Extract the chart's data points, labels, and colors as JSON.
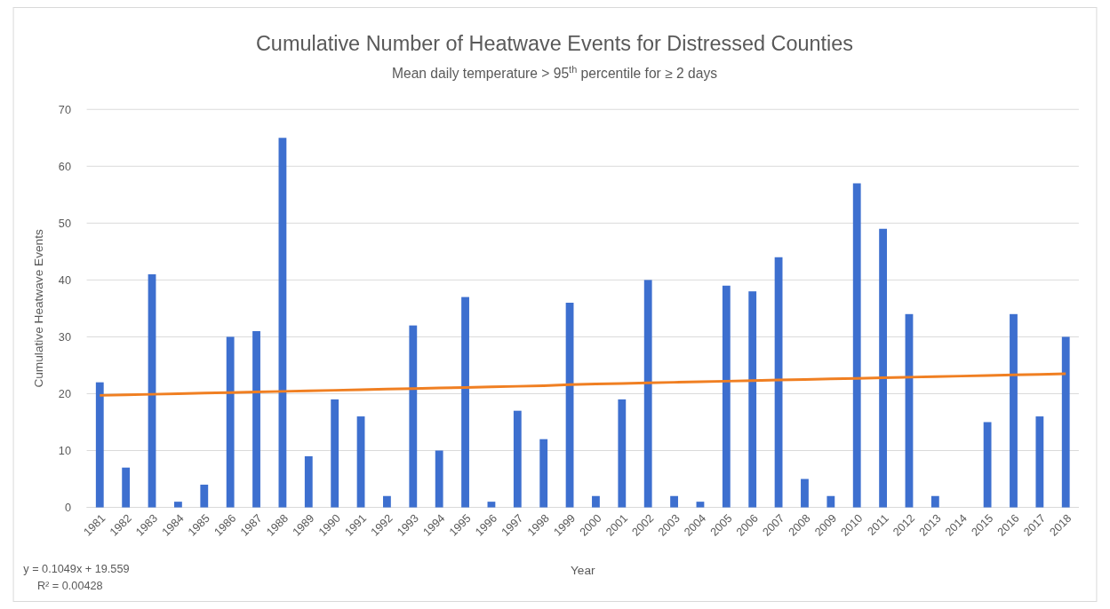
{
  "chart_data": {
    "type": "bar",
    "title": "Cumulative Number of Heatwave Events for Distressed Counties",
    "subtitle": "Mean daily temperature > 95$^{th}$ percentile for ≥ 2 days",
    "xlabel": "Year",
    "ylabel": "Cumulative Heatwave Events",
    "categories": [
      "1981",
      "1982",
      "1983",
      "1984",
      "1985",
      "1986",
      "1987",
      "1988",
      "1989",
      "1990",
      "1991",
      "1992",
      "1993",
      "1994",
      "1995",
      "1996",
      "1997",
      "1998",
      "1999",
      "2000",
      "2001",
      "2002",
      "2003",
      "2004",
      "2005",
      "2006",
      "2007",
      "2008",
      "2009",
      "2010",
      "2011",
      "2012",
      "2013",
      "2014",
      "2015",
      "2016",
      "2017",
      "2018"
    ],
    "series": [
      {
        "color": "#3d6fcf",
        "values": [
          22,
          7,
          41,
          1,
          4,
          30,
          31,
          65,
          9,
          19,
          16,
          2,
          32,
          10,
          37,
          1,
          17,
          12,
          36,
          2,
          19,
          40,
          2,
          1,
          39,
          38,
          44,
          5,
          2,
          57,
          49,
          34,
          2,
          0,
          15,
          34,
          16,
          30
        ]
      },
      {
        "type": "line",
        "color": "#f07f22",
        "values": [
          19.7,
          19.8,
          19.9,
          20.0,
          20.1,
          20.2,
          20.3,
          20.4,
          20.5,
          20.6,
          20.7,
          20.8,
          20.9,
          21.0,
          21.1,
          21.2,
          21.3,
          21.4,
          21.6,
          21.7,
          21.8,
          21.9,
          22.0,
          22.1,
          22.2,
          22.3,
          22.4,
          22.5,
          22.6,
          22.7,
          22.8,
          22.9,
          23.0,
          23.1,
          23.2,
          23.3,
          23.4,
          23.5
        ]
      }
    ],
    "ylim": [
      0,
      70
    ],
    "yticks": [
      0,
      10,
      20,
      30,
      40,
      50,
      60,
      70
    ],
    "grid": "y",
    "annotations": [
      "y = 0.1049x + 19.559",
      "R² = 0.00428"
    ]
  }
}
